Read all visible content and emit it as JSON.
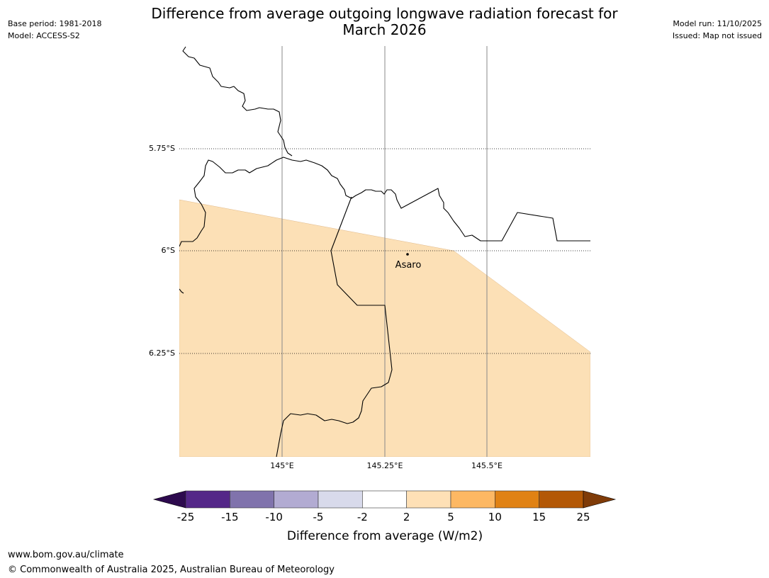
{
  "title_line1": "Difference from average outgoing longwave radiation forecast for",
  "title_line2": "March 2026",
  "meta_left": {
    "base_period": "Base period: 1981-2018",
    "model": "Model: ACCESS-S2"
  },
  "meta_right": {
    "model_run": "Model run: 11/10/2025",
    "issued": "Issued: Map not issued"
  },
  "map": {
    "lat_labels": [
      "5.75°S",
      "6°S",
      "6.25°S"
    ],
    "lon_labels": [
      "145°E",
      "145.25°E",
      "145.5°E"
    ],
    "place_label": "Asaro",
    "shaded_category": "2 to 5",
    "shaded_color": "#fce0b6"
  },
  "colorbar": {
    "title": "Difference from average (W/m2)",
    "ticks": [
      "-25",
      "-15",
      "-10",
      "-5",
      "-2",
      "2",
      "5",
      "10",
      "15",
      "25"
    ],
    "low_extend_color": "#2d0a4e",
    "high_extend_color": "#7f3b08",
    "segment_colors": [
      "#542788",
      "#8073ac",
      "#b2abd2",
      "#d8daeb",
      "#ffffff",
      "#fee0b6",
      "#fdb863",
      "#e08214",
      "#b35806"
    ]
  },
  "footer": {
    "url": "www.bom.gov.au/climate",
    "copyright": "© Commonwealth of Australia 2025, Australian Bureau of Meteorology"
  }
}
